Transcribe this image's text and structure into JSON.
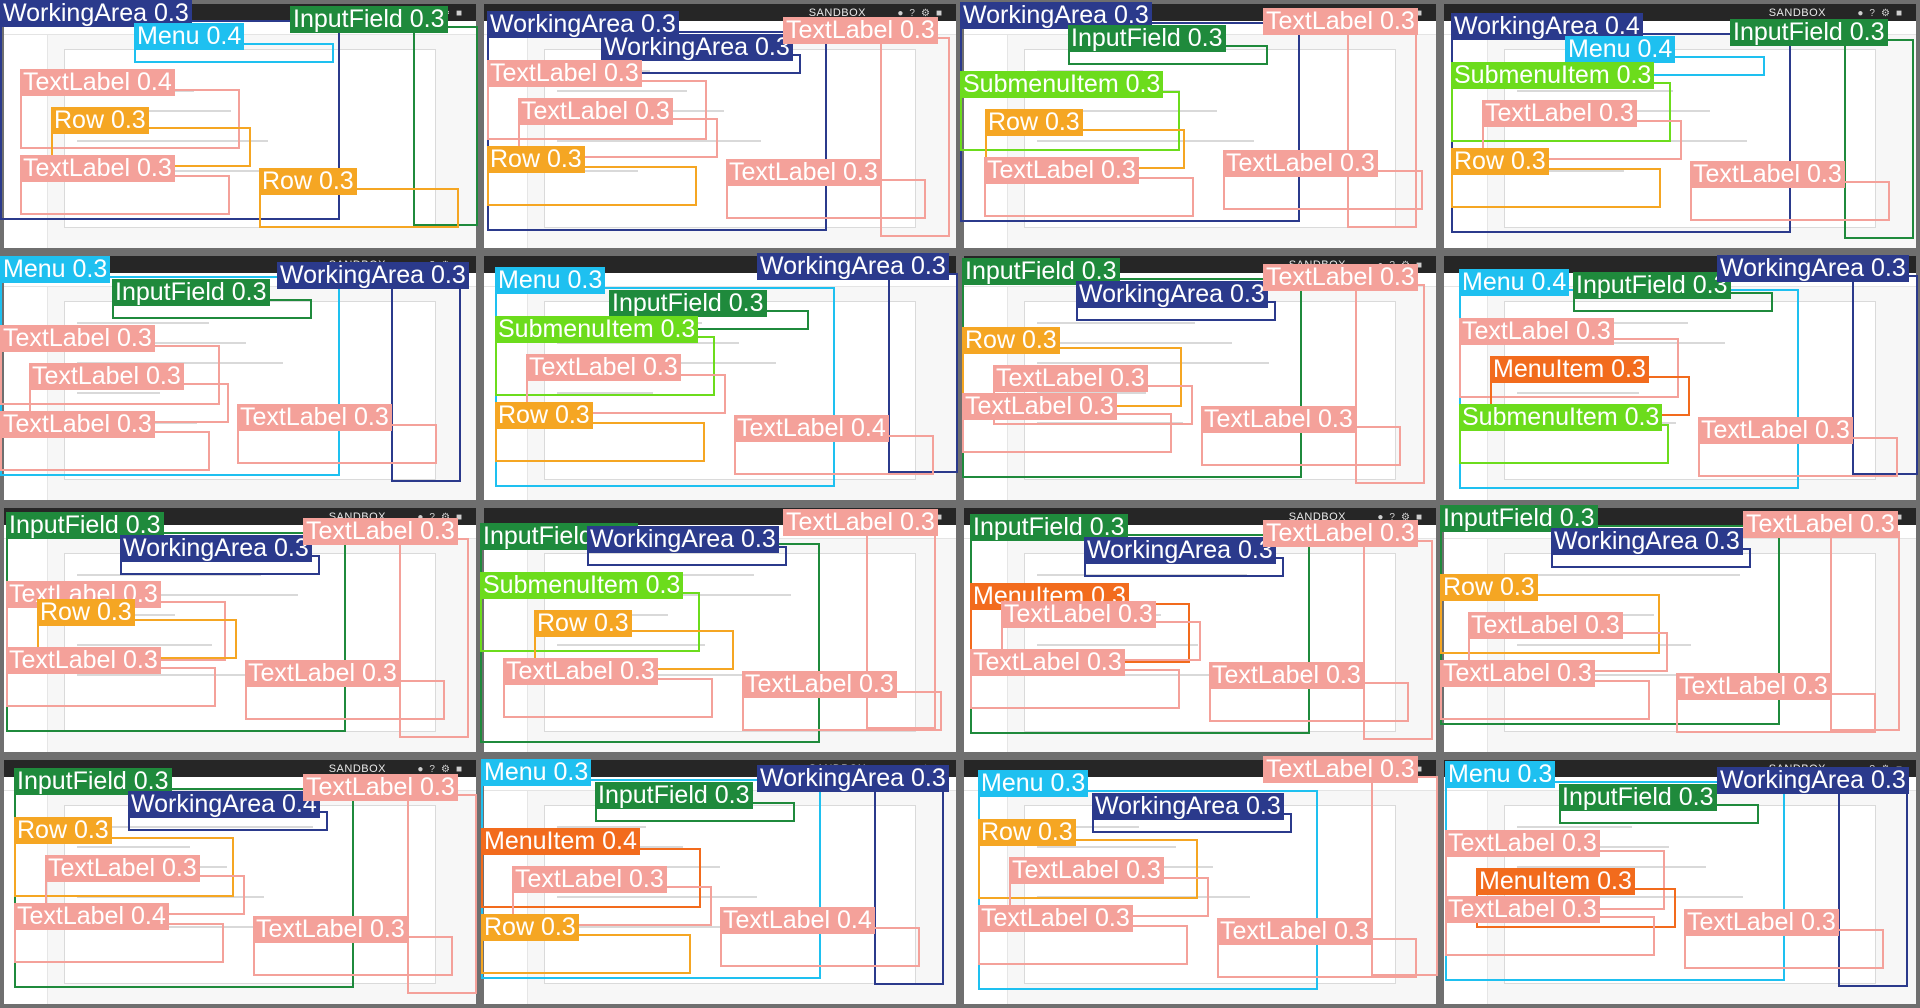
{
  "window": {
    "brand": "SANDBOX",
    "icons": [
      "bell-icon",
      "question-icon",
      "settings-icon",
      "user-icon"
    ]
  },
  "colors": {
    "WorkingArea": "#2b3a8c",
    "TextLabel": "#f4a19a",
    "Row": "#f5a623",
    "Menu": "#1ec0f0",
    "InputField": "#1f8a3c",
    "SubmenuItem": "#6cdc1c",
    "MenuItem": "#f26b1d"
  },
  "tiles": [
    {
      "labels": [
        "WorkingArea 0.3",
        "Menu 0.4",
        "InputField 0.3",
        "TextLabel 0.4",
        "Row 0.3",
        "TextLabel 0.3",
        "Row 0.3"
      ]
    },
    {
      "labels": [
        "WorkingArea 0.3",
        "WorkingArea 0.3",
        "TextLabel 0.3",
        "TextLabel 0.3",
        "TextLabel 0.3",
        "Row 0.3",
        "TextLabel 0.3"
      ]
    },
    {
      "labels": [
        "WorkingArea 0.3",
        "InputField 0.3",
        "TextLabel 0.3",
        "SubmenuItem 0.3",
        "Row 0.3",
        "TextLabel 0.3",
        "TextLabel 0.3"
      ]
    },
    {
      "labels": [
        "WorkingArea 0.4",
        "Menu 0.4",
        "InputField 0.3",
        "SubmenuItem 0.3",
        "TextLabel 0.3",
        "Row 0.3",
        "TextLabel 0.3"
      ]
    },
    {
      "labels": [
        "Menu 0.3",
        "InputField 0.3",
        "WorkingArea 0.3",
        "TextLabel 0.3",
        "TextLabel 0.3",
        "TextLabel 0.3",
        "TextLabel 0.3"
      ]
    },
    {
      "labels": [
        "Menu 0.3",
        "InputField 0.3",
        "WorkingArea 0.3",
        "SubmenuItem 0.3",
        "TextLabel 0.3",
        "Row 0.3",
        "TextLabel 0.4"
      ]
    },
    {
      "labels": [
        "InputField 0.3",
        "WorkingArea 0.3",
        "TextLabel 0.3",
        "Row 0.3",
        "TextLabel 0.3",
        "TextLabel 0.3",
        "TextLabel 0.3"
      ]
    },
    {
      "labels": [
        "Menu 0.4",
        "InputField 0.3",
        "WorkingArea 0.3",
        "TextLabel 0.3",
        "MenuItem 0.3",
        "SubmenuItem 0.3",
        "TextLabel 0.3"
      ]
    },
    {
      "labels": [
        "InputField 0.3",
        "WorkingArea 0.3",
        "TextLabel 0.3",
        "TextLabel 0.3",
        "Row 0.3",
        "TextLabel 0.3",
        "TextLabel 0.3"
      ]
    },
    {
      "labels": [
        "InputField 0.3",
        "WorkingArea 0.3",
        "TextLabel 0.3",
        "SubmenuItem 0.3",
        "Row 0.3",
        "TextLabel 0.3",
        "TextLabel 0.3"
      ]
    },
    {
      "labels": [
        "InputField 0.3",
        "WorkingArea 0.3",
        "TextLabel 0.3",
        "MenuItem 0.3",
        "TextLabel 0.3",
        "TextLabel 0.3",
        "TextLabel 0.3"
      ]
    },
    {
      "labels": [
        "InputField 0.3",
        "WorkingArea 0.3",
        "TextLabel 0.3",
        "Row 0.3",
        "TextLabel 0.3",
        "TextLabel 0.3",
        "TextLabel 0.3"
      ]
    },
    {
      "labels": [
        "InputField 0.3",
        "WorkingArea 0.4",
        "TextLabel 0.3",
        "Row 0.3",
        "TextLabel 0.3",
        "TextLabel 0.4",
        "TextLabel 0.3"
      ]
    },
    {
      "labels": [
        "Menu 0.3",
        "InputField 0.3",
        "WorkingArea 0.3",
        "MenuItem 0.4",
        "TextLabel 0.3",
        "Row 0.3",
        "TextLabel 0.4"
      ]
    },
    {
      "labels": [
        "Menu 0.3",
        "WorkingArea 0.3",
        "TextLabel 0.3",
        "Row 0.3",
        "TextLabel 0.3",
        "TextLabel 0.3",
        "TextLabel 0.3"
      ]
    },
    {
      "labels": [
        "Menu 0.3",
        "InputField 0.3",
        "WorkingArea 0.3",
        "TextLabel 0.3",
        "MenuItem 0.3",
        "TextLabel 0.3",
        "TextLabel 0.3"
      ]
    }
  ]
}
